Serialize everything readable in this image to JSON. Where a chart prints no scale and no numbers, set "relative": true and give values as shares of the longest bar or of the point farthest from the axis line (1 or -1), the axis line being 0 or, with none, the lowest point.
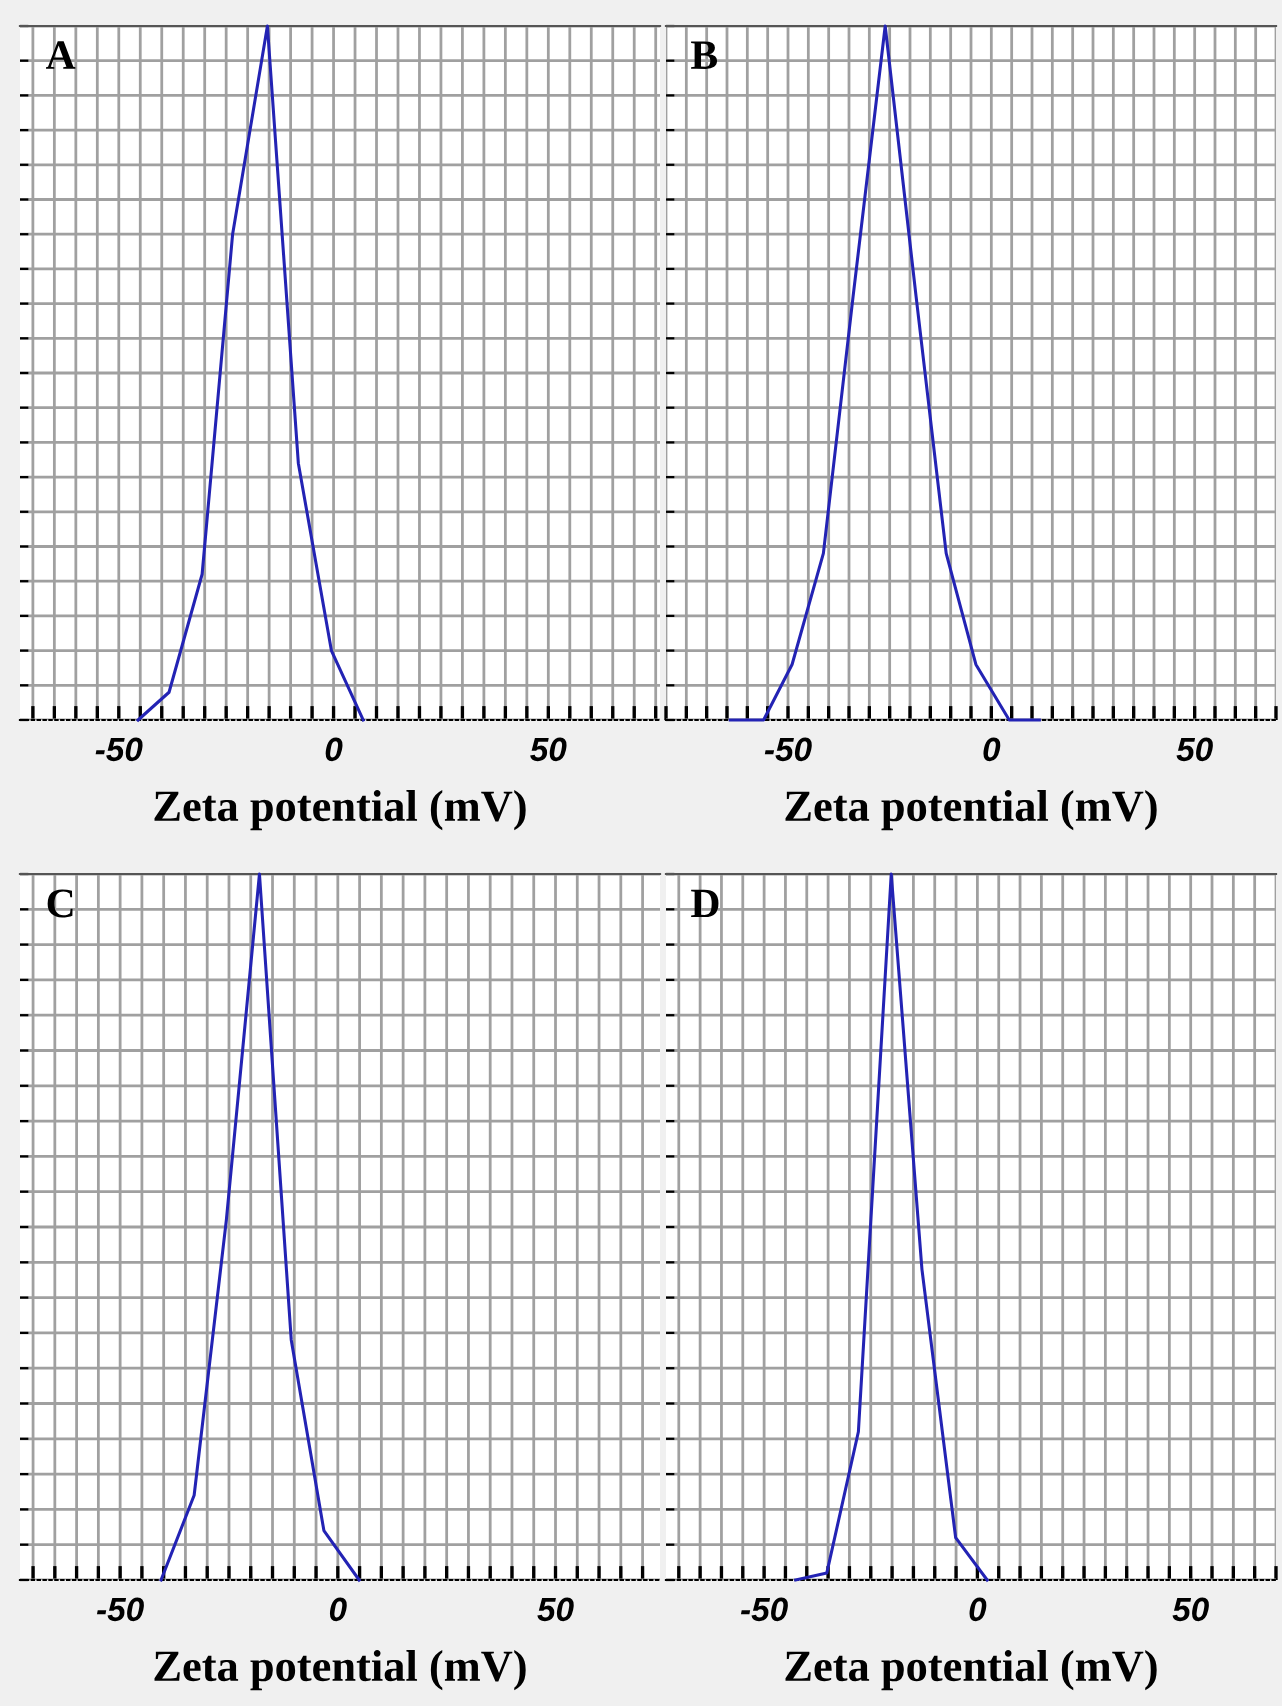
{
  "chart_data": [
    {
      "type": "line",
      "title": "A",
      "xlabel": "Zeta potential (mV)",
      "relative": true,
      "grid": true,
      "marker": "none",
      "line_style": "solid",
      "xlim": [
        -73,
        76
      ],
      "xticks": [
        {
          "value": -70,
          "label": null
        },
        {
          "value": -65,
          "label": null
        },
        {
          "value": -60,
          "label": null
        },
        {
          "value": -55,
          "label": null
        },
        -50,
        {
          "value": -45,
          "label": null
        },
        {
          "value": -40,
          "label": null
        },
        {
          "value": -35,
          "label": null
        },
        {
          "value": -30,
          "label": null
        },
        {
          "value": -25,
          "label": null
        },
        {
          "value": -20,
          "label": null
        },
        {
          "value": -15,
          "label": null
        },
        {
          "value": -10,
          "label": null
        },
        {
          "value": -5,
          "label": null
        },
        0,
        {
          "value": 5,
          "label": null
        },
        {
          "value": 10,
          "label": null
        },
        {
          "value": 15,
          "label": null
        },
        {
          "value": 20,
          "label": null
        },
        {
          "value": 25,
          "label": null
        },
        {
          "value": 30,
          "label": null
        },
        {
          "value": 35,
          "label": null
        },
        {
          "value": 40,
          "label": null
        },
        {
          "value": 45,
          "label": null
        },
        50,
        {
          "value": 55,
          "label": null
        },
        {
          "value": 60,
          "label": null
        },
        {
          "value": 65,
          "label": null
        },
        {
          "value": 70,
          "label": null
        },
        {
          "value": 75,
          "label": null
        }
      ],
      "series": [
        {
          "color": "#2323b4",
          "x": [
            -45.5,
            -38.3,
            -30.6,
            -23.5,
            -15.4,
            -8.2,
            -0.5,
            6.9
          ],
          "values": [
            0,
            0.04,
            0.21,
            0.7,
            1,
            0.37,
            0.1,
            0
          ]
        }
      ]
    },
    {
      "type": "line",
      "title": "B",
      "xlabel": "Zeta potential (mV)",
      "relative": true,
      "grid": true,
      "marker": "none",
      "line_style": "solid",
      "xlim": [
        -80,
        70
      ],
      "xticks": [
        {
          "value": -80,
          "label": null
        },
        {
          "value": -75,
          "label": null
        },
        {
          "value": -70,
          "label": null
        },
        {
          "value": -65,
          "label": null
        },
        {
          "value": -60,
          "label": null
        },
        {
          "value": -55,
          "label": null
        },
        -50,
        {
          "value": -45,
          "label": null
        },
        {
          "value": -40,
          "label": null
        },
        {
          "value": -35,
          "label": null
        },
        {
          "value": -30,
          "label": null
        },
        {
          "value": -25,
          "label": null
        },
        {
          "value": -20,
          "label": null
        },
        {
          "value": -15,
          "label": null
        },
        {
          "value": -10,
          "label": null
        },
        {
          "value": -5,
          "label": null
        },
        0,
        {
          "value": 5,
          "label": null
        },
        {
          "value": 10,
          "label": null
        },
        {
          "value": 15,
          "label": null
        },
        {
          "value": 20,
          "label": null
        },
        {
          "value": 25,
          "label": null
        },
        {
          "value": 30,
          "label": null
        },
        {
          "value": 35,
          "label": null
        },
        {
          "value": 40,
          "label": null
        },
        {
          "value": 45,
          "label": null
        },
        50,
        {
          "value": 55,
          "label": null
        },
        {
          "value": 60,
          "label": null
        },
        {
          "value": 65,
          "label": null
        },
        {
          "value": 70,
          "label": null
        }
      ],
      "series": [
        {
          "color": "#2323b4",
          "x": [
            -64.2,
            -56,
            -49,
            -41.3,
            -34,
            -26.1,
            -18.5,
            -11.1,
            -3.8,
            4.4,
            11.8
          ],
          "values": [
            0,
            0,
            0.08,
            0.24,
            0.61,
            1,
            0.61,
            0.24,
            0.08,
            0,
            0
          ]
        }
      ]
    },
    {
      "type": "line",
      "title": "C",
      "xlabel": "Zeta potential (mV)",
      "relative": true,
      "grid": true,
      "marker": "none",
      "line_style": "solid",
      "xlim": [
        -73,
        74
      ],
      "xticks": [
        {
          "value": -70,
          "label": null
        },
        {
          "value": -65,
          "label": null
        },
        {
          "value": -60,
          "label": null
        },
        {
          "value": -55,
          "label": null
        },
        -50,
        {
          "value": -45,
          "label": null
        },
        {
          "value": -40,
          "label": null
        },
        {
          "value": -35,
          "label": null
        },
        {
          "value": -30,
          "label": null
        },
        {
          "value": -25,
          "label": null
        },
        {
          "value": -20,
          "label": null
        },
        {
          "value": -15,
          "label": null
        },
        {
          "value": -10,
          "label": null
        },
        {
          "value": -5,
          "label": null
        },
        0,
        {
          "value": 5,
          "label": null
        },
        {
          "value": 10,
          "label": null
        },
        {
          "value": 15,
          "label": null
        },
        {
          "value": 20,
          "label": null
        },
        {
          "value": 25,
          "label": null
        },
        {
          "value": 30,
          "label": null
        },
        {
          "value": 35,
          "label": null
        },
        {
          "value": 40,
          "label": null
        },
        {
          "value": 45,
          "label": null
        },
        50,
        {
          "value": 55,
          "label": null
        },
        {
          "value": 60,
          "label": null
        },
        {
          "value": 65,
          "label": null
        },
        {
          "value": 70,
          "label": null
        }
      ],
      "series": [
        {
          "color": "#2323b4",
          "x": [
            -40.6,
            -33,
            -25.6,
            -18,
            -10.7,
            -3.2,
            4.9
          ],
          "values": [
            0,
            0.12,
            0.51,
            1,
            0.34,
            0.07,
            0
          ]
        }
      ]
    },
    {
      "type": "line",
      "title": "D",
      "xlabel": "Zeta potential (mV)",
      "relative": true,
      "grid": true,
      "marker": "none",
      "line_style": "solid",
      "xlim": [
        -73,
        70
      ],
      "xticks": [
        {
          "value": -70,
          "label": null
        },
        {
          "value": -65,
          "label": null
        },
        {
          "value": -60,
          "label": null
        },
        {
          "value": -55,
          "label": null
        },
        -50,
        {
          "value": -45,
          "label": null
        },
        {
          "value": -40,
          "label": null
        },
        {
          "value": -35,
          "label": null
        },
        {
          "value": -30,
          "label": null
        },
        {
          "value": -25,
          "label": null
        },
        {
          "value": -20,
          "label": null
        },
        {
          "value": -15,
          "label": null
        },
        {
          "value": -10,
          "label": null
        },
        {
          "value": -5,
          "label": null
        },
        0,
        {
          "value": 5,
          "label": null
        },
        {
          "value": 10,
          "label": null
        },
        {
          "value": 15,
          "label": null
        },
        {
          "value": 20,
          "label": null
        },
        {
          "value": 25,
          "label": null
        },
        {
          "value": 30,
          "label": null
        },
        {
          "value": 35,
          "label": null
        },
        {
          "value": 40,
          "label": null
        },
        {
          "value": 45,
          "label": null
        },
        50,
        {
          "value": 55,
          "label": null
        },
        {
          "value": 60,
          "label": null
        },
        {
          "value": 65,
          "label": null
        },
        {
          "value": 70,
          "label": null
        }
      ],
      "series": [
        {
          "color": "#2323b4",
          "x": [
            -42.6,
            -35.3,
            -27.9,
            -20.2,
            -13,
            -5.1,
            2.3
          ],
          "values": [
            0,
            0.01,
            0.21,
            1,
            0.44,
            0.06,
            0
          ]
        }
      ]
    }
  ]
}
